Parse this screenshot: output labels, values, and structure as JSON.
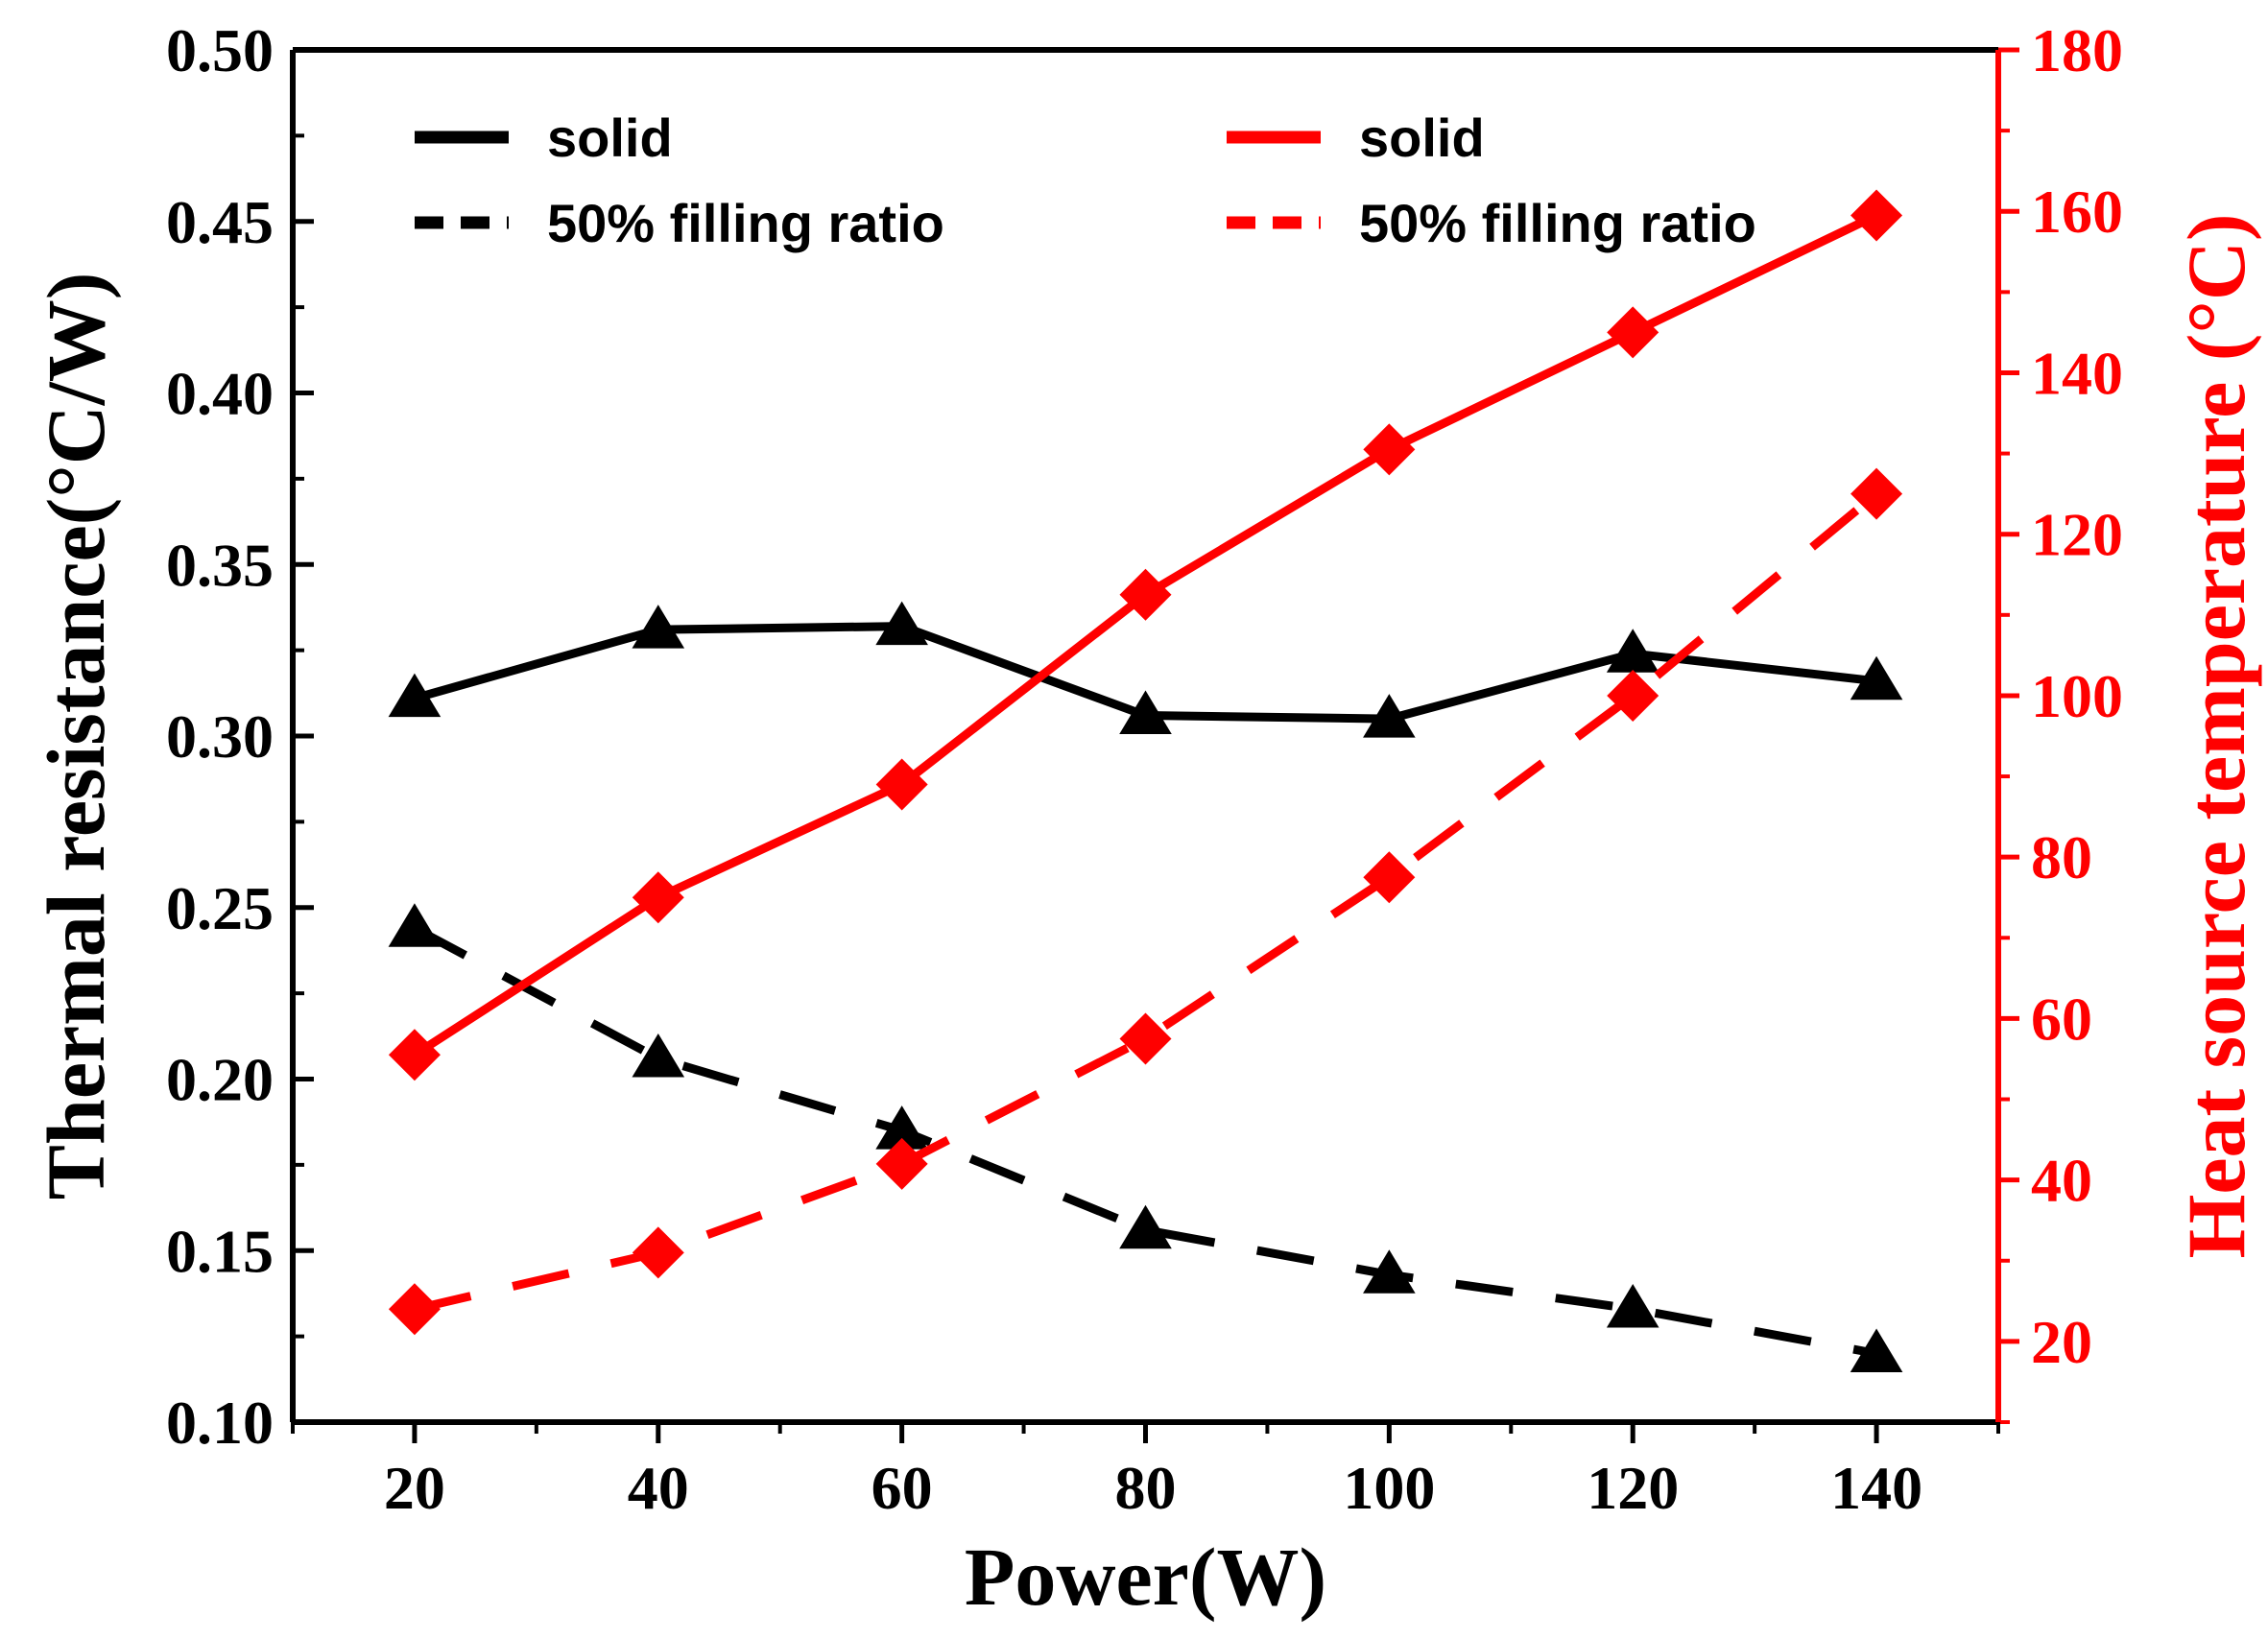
{
  "chart_data": {
    "type": "line",
    "x": [
      20,
      40,
      60,
      80,
      100,
      120,
      140
    ],
    "xlabel": "Power(W)",
    "ylabel": "Thermal resistance(°C/W)",
    "y2label": "Heat source temperature (°C)",
    "xlim": [
      10,
      150
    ],
    "ylim": [
      0.1,
      0.5
    ],
    "y2lim": [
      10,
      180
    ],
    "xticks": [
      "20",
      "40",
      "60",
      "80",
      "100",
      "120",
      "140"
    ],
    "yticks": [
      "0.10",
      "0.15",
      "0.20",
      "0.25",
      "0.30",
      "0.35",
      "0.40",
      "0.45",
      "0.50"
    ],
    "y2ticks": [
      "20",
      "40",
      "60",
      "80",
      "100",
      "120",
      "140",
      "160",
      "180"
    ],
    "colors": {
      "left": "#000000",
      "right": "#ff0000"
    },
    "series": [
      {
        "name": "solid",
        "axis": "left",
        "style": "solid",
        "marker": "triangle",
        "color": "#000000",
        "values": [
          0.311,
          0.331,
          0.332,
          0.306,
          0.305,
          0.324,
          0.316
        ]
      },
      {
        "name": "50% filling ratio",
        "axis": "left",
        "style": "dashed",
        "marker": "triangle",
        "color": "#000000",
        "values": [
          0.244,
          0.206,
          0.185,
          0.156,
          0.143,
          0.133,
          0.12
        ]
      },
      {
        "name": "solid",
        "axis": "right",
        "style": "solid",
        "marker": "diamond",
        "color": "#ff0000",
        "values": [
          55.5,
          75.0,
          89.0,
          112.5,
          130.5,
          145.0,
          159.5
        ]
      },
      {
        "name": "50% filling ratio",
        "axis": "right",
        "style": "dashed",
        "marker": "diamond",
        "color": "#ff0000",
        "values": [
          24.0,
          31.0,
          42.0,
          57.5,
          77.5,
          100.0,
          125.0
        ]
      }
    ],
    "legend": [
      {
        "label": "solid",
        "style": "solid",
        "color": "#000000"
      },
      {
        "label": "50% filling ratio",
        "style": "dashed",
        "color": "#000000"
      },
      {
        "label": "solid",
        "style": "solid",
        "color": "#ff0000"
      },
      {
        "label": "50% filling ratio",
        "style": "dashed",
        "color": "#ff0000"
      }
    ]
  }
}
